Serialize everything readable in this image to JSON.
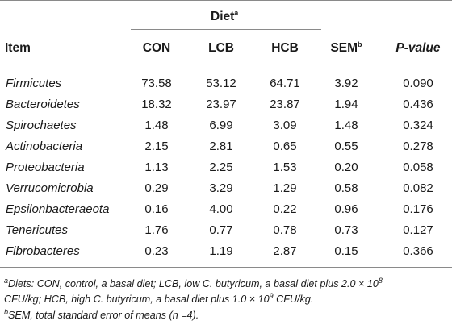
{
  "table": {
    "group_header": {
      "text": "Diet",
      "sup": "a"
    },
    "headers": {
      "item": "Item",
      "con": "CON",
      "lcb": "LCB",
      "hcb": "HCB",
      "sem": "SEM",
      "sem_sup": "b",
      "pvalue": "P-value"
    },
    "rows": [
      {
        "item": "Firmicutes",
        "con": "73.58",
        "lcb": "53.12",
        "hcb": "64.71",
        "sem": "3.92",
        "p": "0.090"
      },
      {
        "item": "Bacteroidetes",
        "con": "18.32",
        "lcb": "23.97",
        "hcb": "23.87",
        "sem": "1.94",
        "p": "0.436"
      },
      {
        "item": "Spirochaetes",
        "con": "1.48",
        "lcb": "6.99",
        "hcb": "3.09",
        "sem": "1.48",
        "p": "0.324"
      },
      {
        "item": "Actinobacteria",
        "con": "2.15",
        "lcb": "2.81",
        "hcb": "0.65",
        "sem": "0.55",
        "p": "0.278"
      },
      {
        "item": "Proteobacteria",
        "con": "1.13",
        "lcb": "2.25",
        "hcb": "1.53",
        "sem": "0.20",
        "p": "0.058"
      },
      {
        "item": "Verrucomicrobia",
        "con": "0.29",
        "lcb": "3.29",
        "hcb": "1.29",
        "sem": "0.58",
        "p": "0.082"
      },
      {
        "item": "Epsilonbacteraeota",
        "con": "0.16",
        "lcb": "4.00",
        "hcb": "0.22",
        "sem": "0.96",
        "p": "0.176"
      },
      {
        "item": "Tenericutes",
        "con": "1.76",
        "lcb": "0.77",
        "hcb": "0.78",
        "sem": "0.73",
        "p": "0.127"
      },
      {
        "item": "Fibrobacteres",
        "con": "0.23",
        "lcb": "1.19",
        "hcb": "2.87",
        "sem": "0.15",
        "p": "0.366"
      }
    ]
  },
  "footnotes": {
    "a_mark": "a",
    "a_line1_pre": "Diets: CON, control, a basal diet; LCB, low C. butyricum, a basal diet plus 2.0 × 10",
    "a_line1_exp": "8",
    "a_line2_pre": "CFU/kg; HCB, high C. butyricum, a basal diet plus 1.0 × 10",
    "a_line2_exp": "9",
    "a_line2_post": " CFU/kg.",
    "b_mark": "b",
    "b_text": "SEM, total standard error of means (n =4)."
  }
}
